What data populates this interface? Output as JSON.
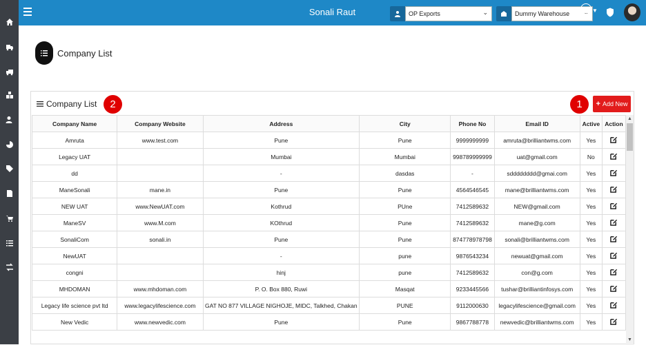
{
  "header": {
    "user_name": "Sonali Raut",
    "company_select": {
      "value": "OP Exports"
    },
    "warehouse_select": {
      "value": "Dummy Warehouse"
    }
  },
  "page": {
    "title": "Company List"
  },
  "panel": {
    "title": "Company List",
    "add_button_label": "Add New",
    "annotation_1": "1",
    "annotation_2": "2"
  },
  "table": {
    "columns": [
      "Company Name",
      "Company Website",
      "Address",
      "City",
      "Phone No",
      "Email ID",
      "Active",
      "Action"
    ],
    "rows": [
      [
        "Amruta",
        "www.test.com",
        "Pune",
        "Pune",
        "9999999999",
        "amruta@brilliantwms.com",
        "Yes"
      ],
      [
        "Legacy UAT",
        "",
        "Mumbai",
        "Mumbai",
        "998789999999",
        "uat@gmail.com",
        "No"
      ],
      [
        "dd",
        "",
        "-",
        "dasdas",
        "-",
        "sdddddddd@gmai.com",
        "Yes"
      ],
      [
        "ManeSonali",
        "mane.in",
        "Pune",
        "Pune",
        "4564546545",
        "mane@brilliantwms.com",
        "Yes"
      ],
      [
        "NEW UAT",
        "www.NewUAT.com",
        "Kothrud",
        "PUne",
        "7412589632",
        "NEW@gmail.com",
        "Yes"
      ],
      [
        "ManeSV",
        "www.M.com",
        "KOthrud",
        "Pune",
        "7412589632",
        "mane@g.com",
        "Yes"
      ],
      [
        "SonaliCom",
        "sonali.in",
        "Pune",
        "Pune",
        "874778978798",
        "sonali@brilliantwms.com",
        "Yes"
      ],
      [
        "NewUAT",
        "",
        "-",
        "pune",
        "9876543234",
        "newuat@gmail.com",
        "Yes"
      ],
      [
        "congni",
        "",
        "hinj",
        "pune",
        "7412589632",
        "con@g.com",
        "Yes"
      ],
      [
        "MHDOMAN",
        "www.mhdoman.com",
        "P. O. Box 880, Ruwi",
        "Masqat",
        "9233445566",
        "tushar@brilliantinfosys.com",
        "Yes"
      ],
      [
        "Legacy life science pvt ltd",
        "www.legacylifescience.com",
        "GAT NO 877 VILLAGE NIGHOJE, MIDC, Talkhed, Chakan",
        "PUNE",
        "9112000630",
        "legacylifescience@gmail.com",
        "Yes"
      ],
      [
        "New Vedic",
        "www.newvedic.com",
        "Pune",
        "Pune",
        "9867788778",
        "newvedic@brilliantwms.com",
        "Yes"
      ]
    ]
  },
  "icons": {
    "sidebar": [
      "home-icon",
      "truck-icon",
      "delivery-truck-icon",
      "boxes-icon",
      "user-settings-icon",
      "pie-chart-icon",
      "tag-icon",
      "document-download-icon",
      "cart-icon",
      "list-icon",
      "transfer-icon"
    ]
  },
  "colors": {
    "topbar": "#1e88c7",
    "sidebar": "#3b3f45",
    "accent": "#e21b1b"
  }
}
